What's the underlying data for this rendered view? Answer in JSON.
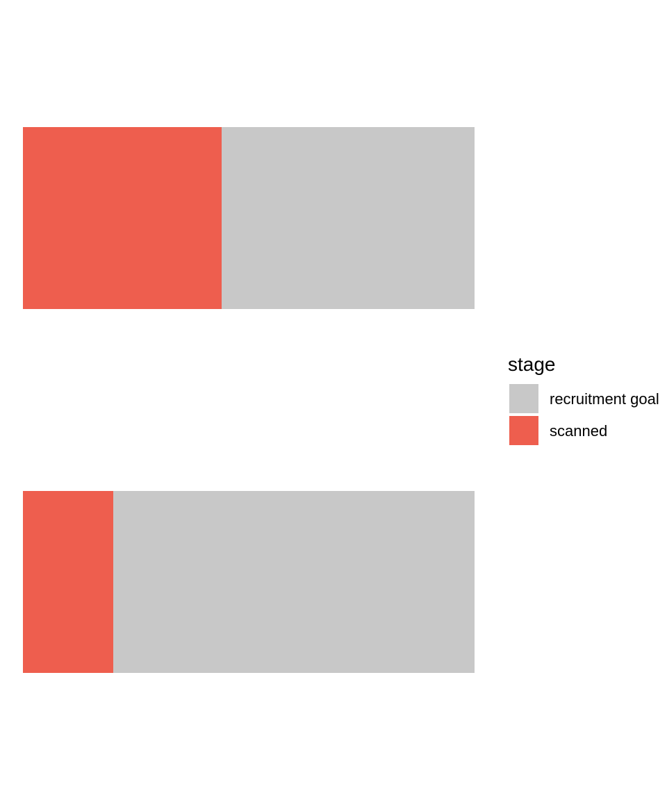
{
  "chart_data": {
    "type": "bar",
    "orientation": "horizontal",
    "stacked": true,
    "categories": [
      "",
      ""
    ],
    "series": [
      {
        "name": "scanned",
        "values": [
          44,
          20
        ],
        "color": "#ee5e4e"
      },
      {
        "name": "recruitment goal",
        "values": [
          56,
          80
        ],
        "color": "#c8c8c8"
      }
    ],
    "xlim": [
      0,
      100
    ],
    "title": "",
    "xlabel": "",
    "ylabel": "",
    "grid": false,
    "axes_visible": false,
    "legend": {
      "title": "stage",
      "position": "right",
      "items": [
        {
          "label": "recruitment goal",
          "color": "#c8c8c8"
        },
        {
          "label": "scanned",
          "color": "#ee5e4e"
        }
      ]
    }
  }
}
